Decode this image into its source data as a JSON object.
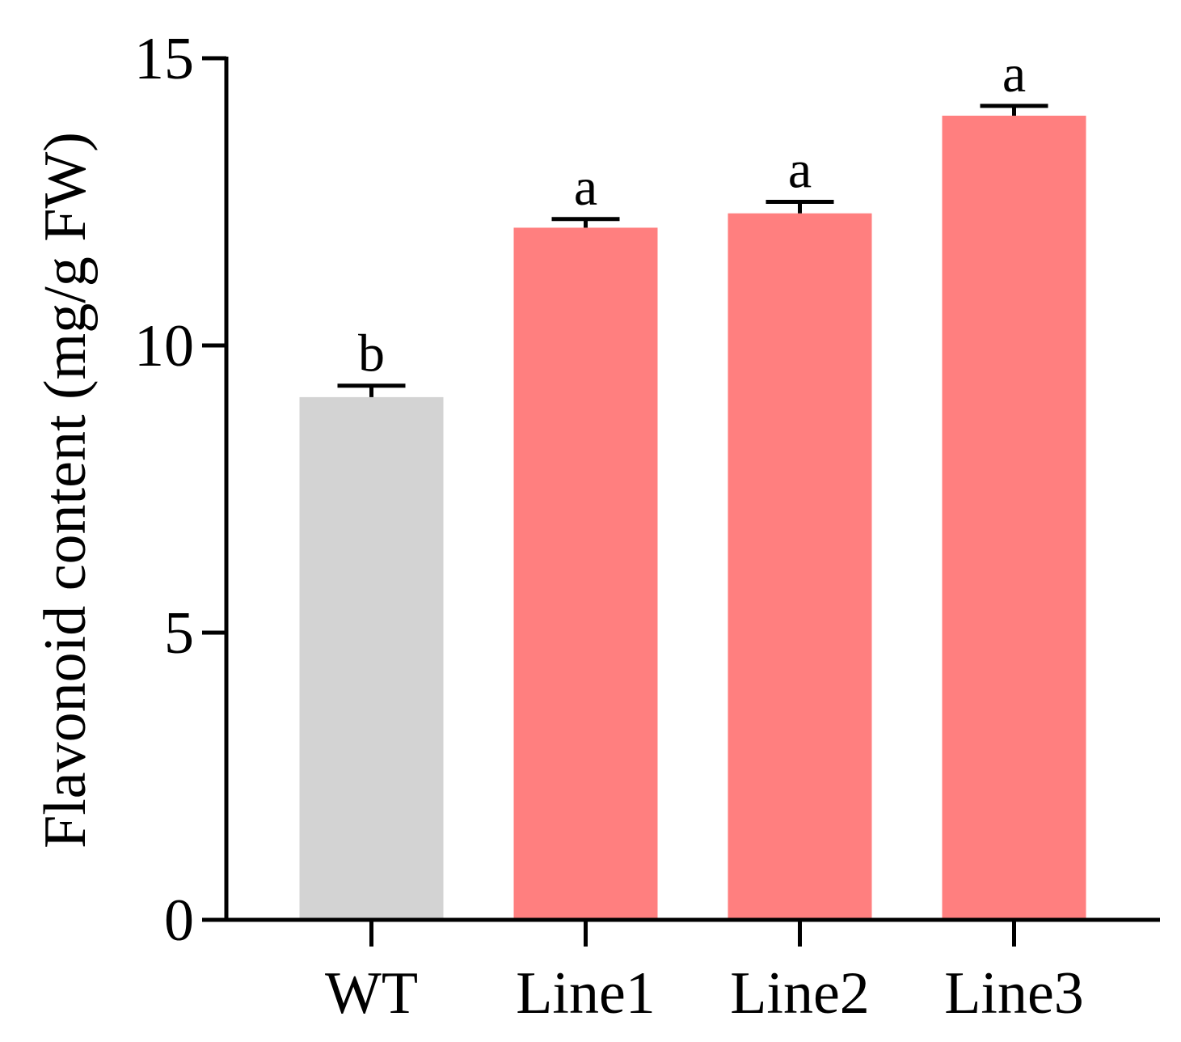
{
  "chart_data": {
    "type": "bar",
    "title": "",
    "xlabel": "",
    "ylabel": "Flavonoid content (mg/g FW)",
    "ylim": [
      0,
      15
    ],
    "yticks": [
      "0",
      "5",
      "10",
      "15"
    ],
    "categories": [
      "WT",
      "Line1",
      "Line2",
      "Line3"
    ],
    "values": [
      9.1,
      12.05,
      12.3,
      14.0
    ],
    "errors": [
      0.2,
      0.15,
      0.2,
      0.17
    ],
    "significance": [
      "b",
      "a",
      "a",
      "a"
    ],
    "colors": [
      "#d3d3d3",
      "#ff7f7f",
      "#ff7f7f",
      "#ff7f7f"
    ],
    "grid": false,
    "legend": "none"
  }
}
